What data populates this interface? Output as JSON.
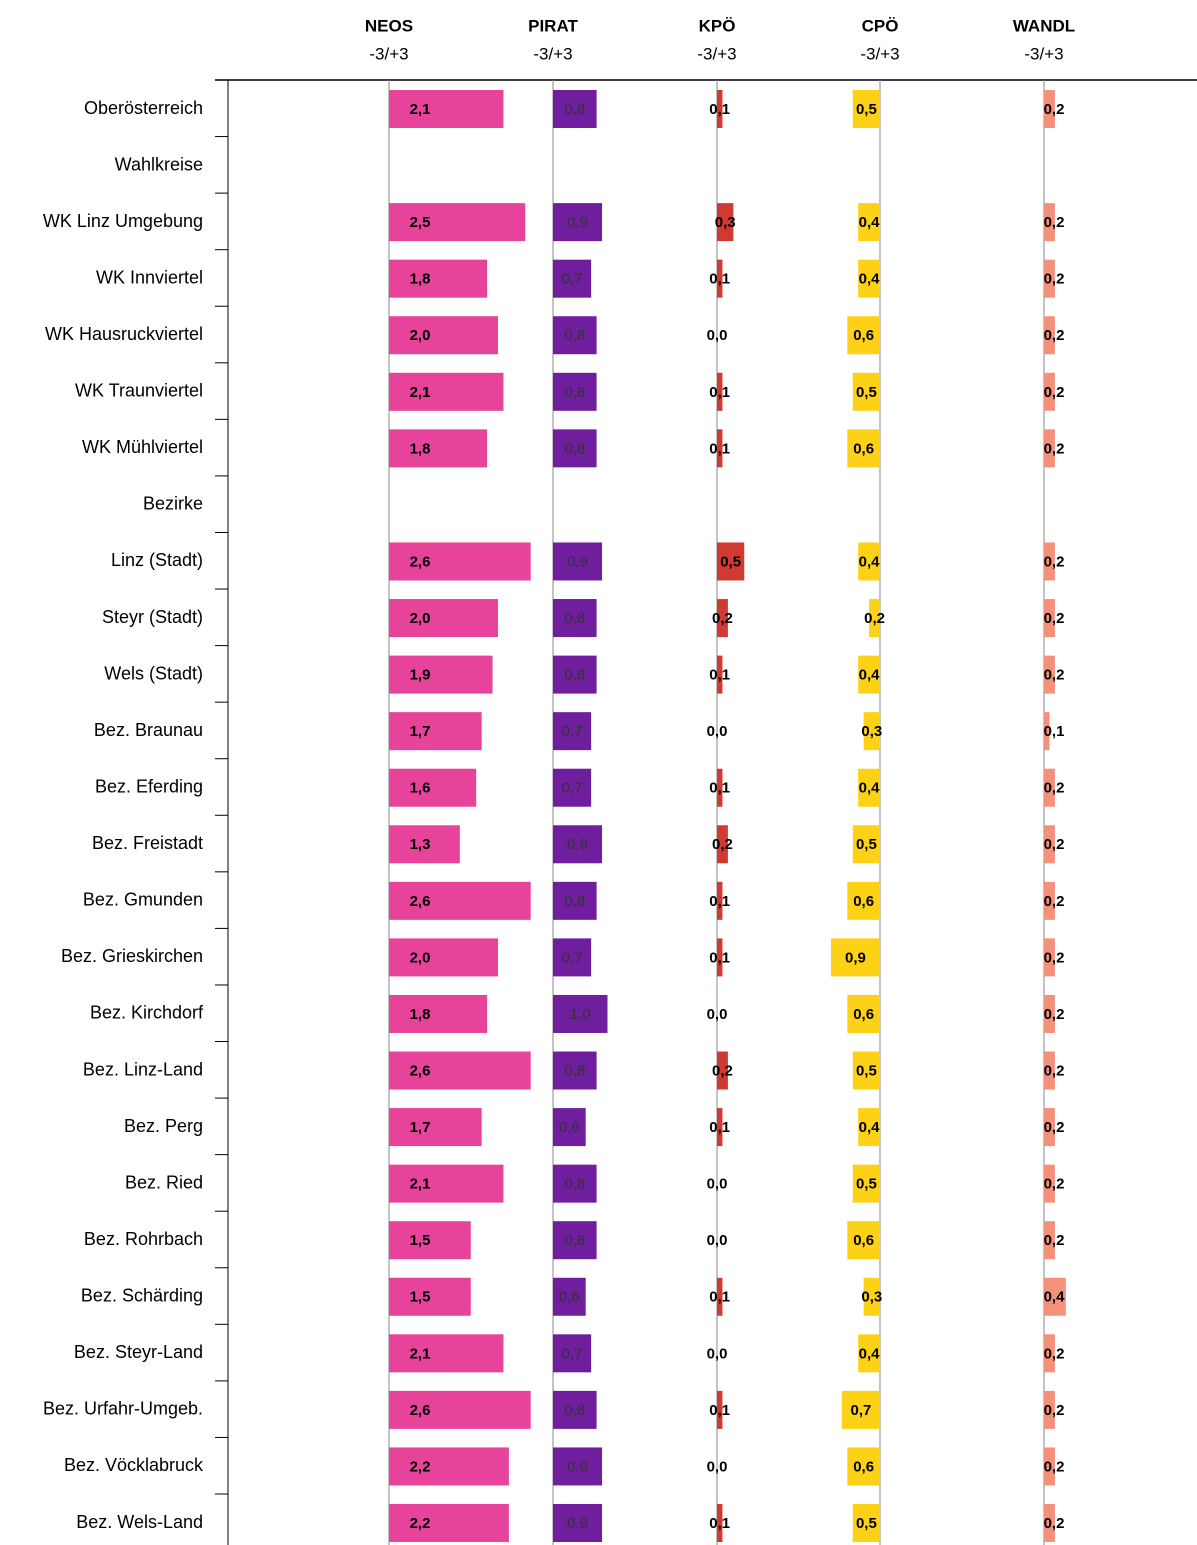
{
  "chart_data": {
    "type": "bar",
    "orientation": "horizontal",
    "categories": [
      "Oberösterreich",
      "Wahlkreise",
      "WK Linz Umgebung",
      "WK Innviertel",
      "WK Hausruckviertel",
      "WK Traunviertel",
      "WK Mühlviertel",
      "Bezirke",
      "Linz (Stadt)",
      "Steyr (Stadt)",
      "Wels (Stadt)",
      "Bez. Braunau",
      "Bez. Eferding",
      "Bez. Freistadt",
      "Bez. Gmunden",
      "Bez. Grieskirchen",
      "Bez. Kirchdorf",
      "Bez. Linz-Land",
      "Bez. Perg",
      "Bez. Ried",
      "Bez. Rohrbach",
      "Bez. Schärding",
      "Bez. Steyr-Land",
      "Bez. Urfahr-Umgeb.",
      "Bez. Vöcklabruck",
      "Bez. Wels-Land"
    ],
    "series": [
      {
        "name": "NEOS",
        "subtitle": "-3/+3",
        "color": "#e8439a",
        "values": [
          2.1,
          null,
          2.5,
          1.8,
          2.0,
          2.1,
          1.8,
          null,
          2.6,
          2.0,
          1.9,
          1.7,
          1.6,
          1.3,
          2.6,
          2.0,
          1.8,
          2.6,
          1.7,
          2.1,
          1.5,
          1.5,
          2.1,
          2.6,
          2.2,
          2.2
        ],
        "value_labels": [
          "2,1",
          null,
          "2,5",
          "1,8",
          "2,0",
          "2,1",
          "1,8",
          null,
          "2,6",
          "2,0",
          "1,9",
          "1,7",
          "1,6",
          "1,3",
          "2,6",
          "2,0",
          "1,8",
          "2,6",
          "1,7",
          "2,1",
          "1,5",
          "1,5",
          "2,1",
          "2,6",
          "2,2",
          "2,2"
        ]
      },
      {
        "name": "PIRAT",
        "subtitle": "-3/+3",
        "color": "#6f1e9e",
        "values": [
          0.8,
          null,
          0.9,
          0.7,
          0.8,
          0.8,
          0.8,
          null,
          0.9,
          0.8,
          0.8,
          0.7,
          0.7,
          0.9,
          0.8,
          0.7,
          1.0,
          0.8,
          0.6,
          0.8,
          0.8,
          0.6,
          0.7,
          0.8,
          0.9,
          0.9
        ],
        "value_labels": [
          "0,8",
          null,
          "0,9",
          "0,7",
          "0,8",
          "0,8",
          "0,8",
          null,
          "0,9",
          "0,8",
          "0,8",
          "0,7",
          "0,7",
          "0,9",
          "0,8",
          "0,7",
          "1,0",
          "0,8",
          "0,6",
          "0,8",
          "0,8",
          "0,6",
          "0,7",
          "0,8",
          "0,9",
          "0,9"
        ]
      },
      {
        "name": "KPÖ",
        "subtitle": "-3/+3",
        "color": "#d13a32",
        "values": [
          0.1,
          null,
          0.3,
          0.1,
          0.0,
          0.1,
          0.1,
          null,
          0.5,
          0.2,
          0.1,
          0.0,
          0.1,
          0.2,
          0.1,
          0.1,
          0.0,
          0.2,
          0.1,
          0.0,
          0.0,
          0.1,
          0.0,
          0.1,
          0.0,
          0.1
        ],
        "value_labels": [
          "0,1",
          null,
          "0,3",
          "0,1",
          "0,0",
          "0,1",
          "0,1",
          null,
          "0,5",
          "0,2",
          "0,1",
          "0,0",
          "0,1",
          "0,2",
          "0,1",
          "0,1",
          "0,0",
          "0,2",
          "0,1",
          "0,0",
          "0,0",
          "0,1",
          "0,0",
          "0,1",
          "0,0",
          "0,1"
        ]
      },
      {
        "name": "CPÖ",
        "subtitle": "-3/+3",
        "color": "#fcd116",
        "values": [
          -0.5,
          null,
          -0.4,
          -0.4,
          -0.6,
          -0.5,
          -0.6,
          null,
          -0.4,
          -0.2,
          -0.4,
          -0.3,
          -0.4,
          -0.5,
          -0.6,
          -0.9,
          -0.6,
          -0.5,
          -0.4,
          -0.5,
          -0.6,
          -0.3,
          -0.4,
          -0.7,
          -0.6,
          -0.5
        ],
        "value_labels": [
          "0,5",
          null,
          "0,4",
          "0,4",
          "0,6",
          "0,5",
          "0,6",
          null,
          "0,4",
          "0,2",
          "0,4",
          "0,3",
          "0,4",
          "0,5",
          "0,6",
          "0,9",
          "0,6",
          "0,5",
          "0,4",
          "0,5",
          "0,6",
          "0,3",
          "0,4",
          "0,7",
          "0,6",
          "0,5"
        ]
      },
      {
        "name": "WANDL",
        "subtitle": "-3/+3",
        "color": "#f4917b",
        "values": [
          0.2,
          null,
          0.2,
          0.2,
          0.2,
          0.2,
          0.2,
          null,
          0.2,
          0.2,
          0.2,
          0.1,
          0.2,
          0.2,
          0.2,
          0.2,
          0.2,
          0.2,
          0.2,
          0.2,
          0.2,
          0.4,
          0.2,
          0.2,
          0.2,
          0.2
        ],
        "value_labels": [
          "0,2",
          null,
          "0,2",
          "0,2",
          "0,2",
          "0,2",
          "0,2",
          null,
          "0,2",
          "0,2",
          "0,2",
          "0,1",
          "0,2",
          "0,2",
          "0,2",
          "0,2",
          "0,2",
          "0,2",
          "0,2",
          "0,2",
          "0,2",
          "0,4",
          "0,2",
          "0,2",
          "0,2",
          "0,2"
        ]
      }
    ]
  }
}
